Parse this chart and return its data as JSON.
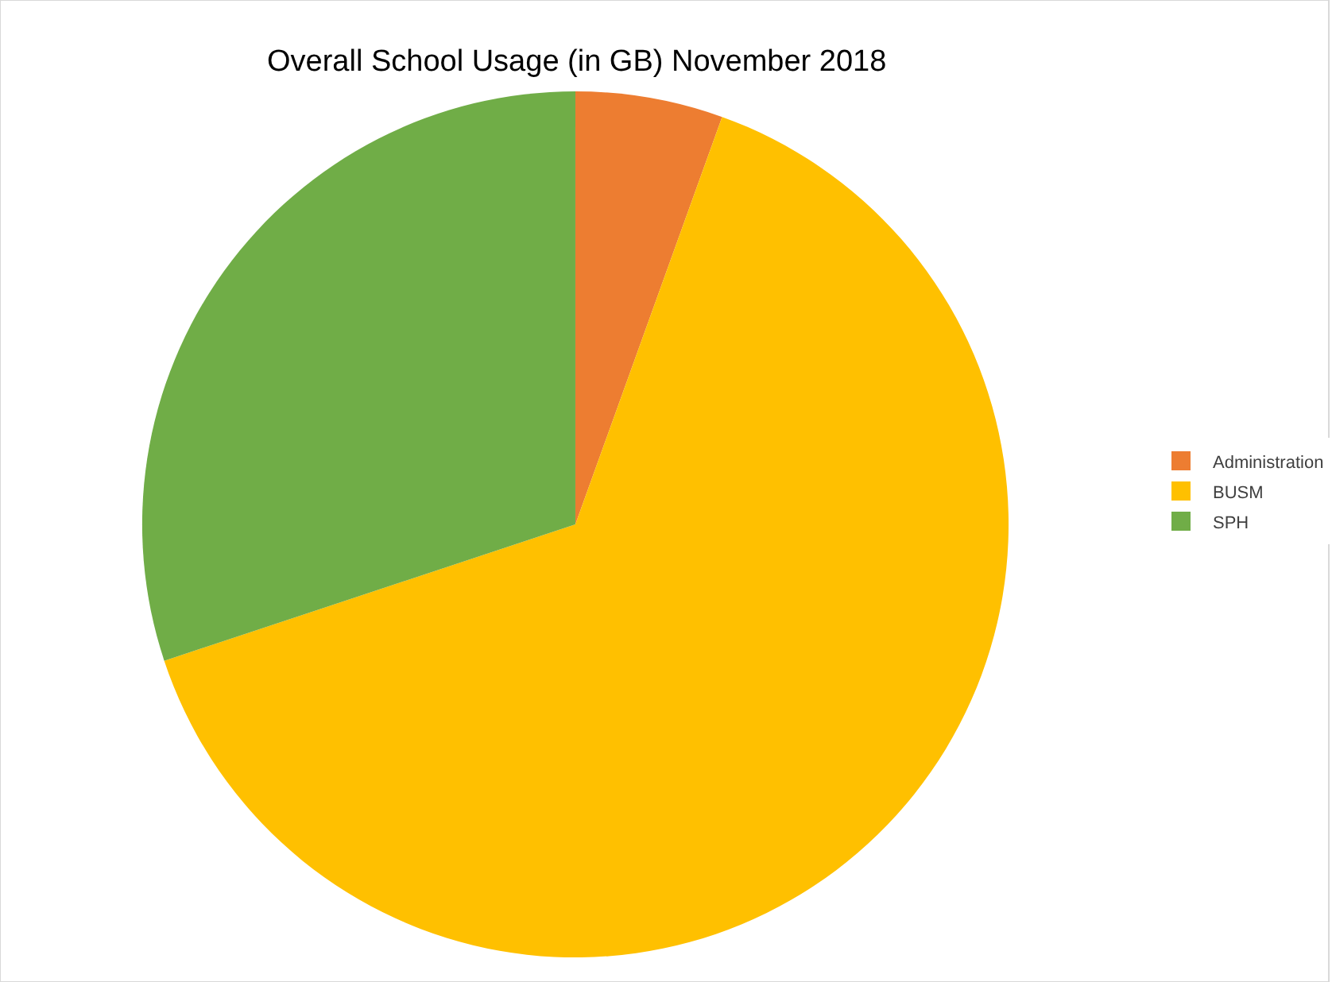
{
  "chart_data": {
    "type": "pie",
    "title": "Overall School Usage (in GB) November 2018",
    "categories": [
      "Administration",
      "BUSM",
      "SPH"
    ],
    "values": [
      5.5,
      64.4,
      30.1
    ],
    "colors": [
      "#ed7d31",
      "#ffc000",
      "#70ad47"
    ],
    "legend": "right"
  }
}
